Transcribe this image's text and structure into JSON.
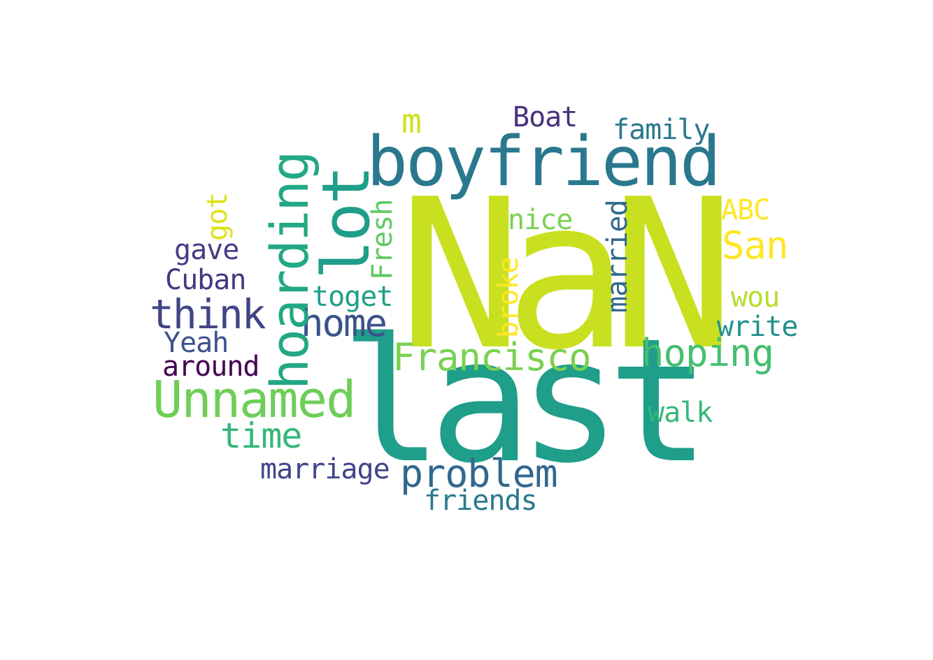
{
  "words": [
    {
      "id": "nan",
      "text": "NaN",
      "color": "#c8e020"
    },
    {
      "id": "last",
      "text": "last",
      "color": "#1f9e89"
    },
    {
      "id": "boyfriend",
      "text": "boyfriend",
      "color": "#2a788e"
    },
    {
      "id": "lot",
      "text": "lot",
      "color": "#1f9e89"
    },
    {
      "id": "hoarding",
      "text": "hoarding",
      "color": "#22a884"
    },
    {
      "id": "unnamed",
      "text": "Unnamed",
      "color": "#6ece58"
    },
    {
      "id": "think",
      "text": "think",
      "color": "#414487"
    },
    {
      "id": "home",
      "text": "home",
      "color": "#3b528b"
    },
    {
      "id": "francisco",
      "text": "Francisco",
      "color": "#7ad151"
    },
    {
      "id": "problem",
      "text": "problem",
      "color": "#31688e"
    },
    {
      "id": "hoping",
      "text": "hoping",
      "color": "#44bf70"
    },
    {
      "id": "san",
      "text": "San",
      "color": "#fde725"
    },
    {
      "id": "time",
      "text": "time",
      "color": "#35b779"
    },
    {
      "id": "marriage",
      "text": "marriage",
      "color": "#414487"
    },
    {
      "id": "friends",
      "text": "friends",
      "color": "#2a788e"
    },
    {
      "id": "boat",
      "text": "Boat",
      "color": "#46327e"
    },
    {
      "id": "family",
      "text": "family",
      "color": "#2a788e"
    },
    {
      "id": "m",
      "text": "m",
      "color": "#d0e11c"
    },
    {
      "id": "nice",
      "text": "nice",
      "color": "#7ad151"
    },
    {
      "id": "abc",
      "text": "ABC",
      "color": "#fde725"
    },
    {
      "id": "married",
      "text": "married",
      "color": "#31688e"
    },
    {
      "id": "broke",
      "text": "broke",
      "color": "#fde725"
    },
    {
      "id": "fresh",
      "text": "Fresh",
      "color": "#5ec962"
    },
    {
      "id": "toget",
      "text": "toget",
      "color": "#1f9e89"
    },
    {
      "id": "got",
      "text": "got",
      "color": "#dde318"
    },
    {
      "id": "gave",
      "text": "gave",
      "color": "#433e85"
    },
    {
      "id": "cuban",
      "text": "Cuban",
      "color": "#453781"
    },
    {
      "id": "yeah",
      "text": "Yeah",
      "color": "#3b528b"
    },
    {
      "id": "around",
      "text": "around",
      "color": "#440154"
    },
    {
      "id": "wou",
      "text": "wou",
      "color": "#b5de2b"
    },
    {
      "id": "write",
      "text": "write",
      "color": "#21918c"
    },
    {
      "id": "walk",
      "text": "walk",
      "color": "#35b779"
    }
  ]
}
